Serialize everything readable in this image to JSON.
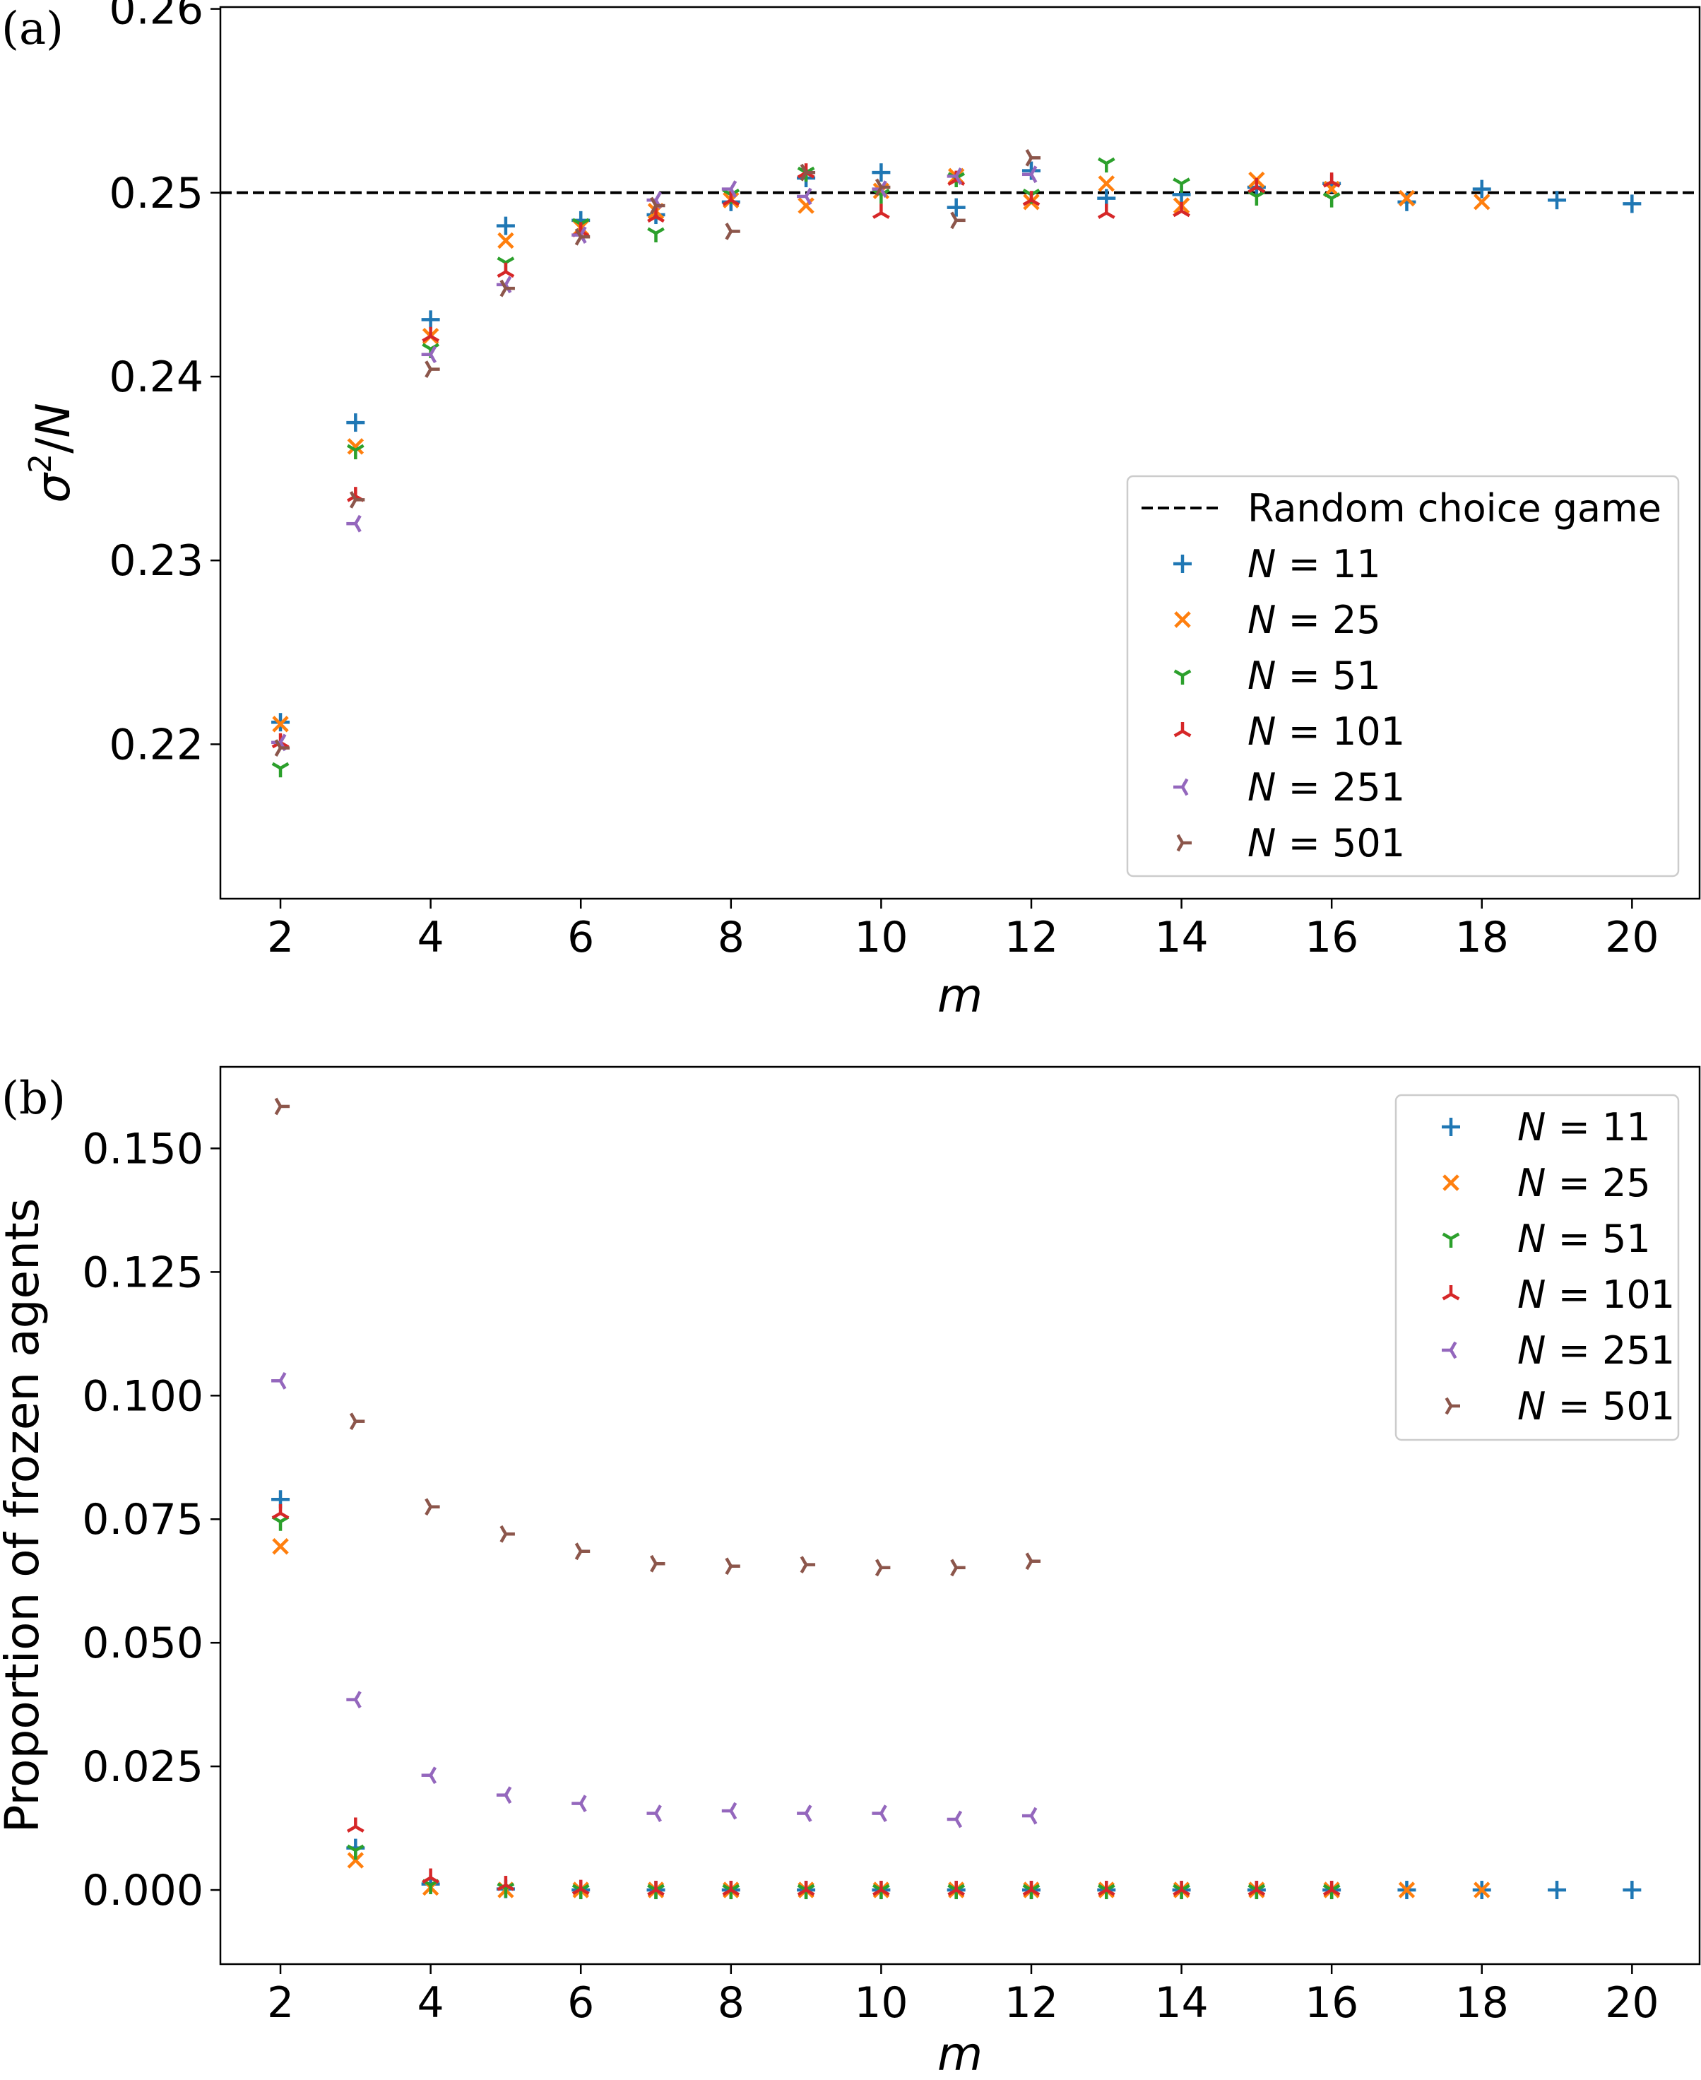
{
  "chart_data": [
    {
      "panel_label": "(a)",
      "type": "scatter",
      "xlabel": "m",
      "ylabel": "σ²/N",
      "xlim": [
        1.2,
        20.9
      ],
      "ylim": [
        0.2116,
        0.2601
      ],
      "xticks": [
        2,
        4,
        6,
        8,
        10,
        12,
        14,
        16,
        18,
        20
      ],
      "yticks": [
        0.22,
        0.23,
        0.24,
        0.25,
        0.26
      ],
      "ytick_labels": [
        "0.22",
        "0.23",
        "0.24",
        "0.25",
        "0.26"
      ],
      "grid": false,
      "legend_position": "lower-right",
      "reference_line": {
        "name": "Random choice game",
        "y": 0.25,
        "style": "dashed",
        "color": "#000000"
      },
      "series": [
        {
          "name": "N = 11",
          "marker": "plus",
          "color": "#1f77b4",
          "points": [
            [
              2,
              0.2212
            ],
            [
              3,
              0.2375
            ],
            [
              4,
              0.2431
            ],
            [
              5,
              0.2482
            ],
            [
              6,
              0.2485
            ],
            [
              7,
              0.2488
            ],
            [
              8,
              0.2495
            ],
            [
              9,
              0.2508
            ],
            [
              10,
              0.2511
            ],
            [
              11,
              0.2492
            ],
            [
              12,
              0.2512
            ],
            [
              13,
              0.2497
            ],
            [
              14,
              0.2499
            ],
            [
              15,
              0.2503
            ],
            [
              16,
              0.2505
            ],
            [
              17,
              0.2495
            ],
            [
              18,
              0.2502
            ],
            [
              19,
              0.2496
            ],
            [
              20,
              0.2494
            ]
          ]
        },
        {
          "name": "N = 25",
          "marker": "x",
          "color": "#ff7f0e",
          "points": [
            [
              2,
              0.2211
            ],
            [
              3,
              0.2362
            ],
            [
              4,
              0.2422
            ],
            [
              5,
              0.2474
            ],
            [
              6,
              0.2481
            ],
            [
              7,
              0.249
            ],
            [
              8,
              0.2496
            ],
            [
              9,
              0.2493
            ],
            [
              10,
              0.2501
            ],
            [
              11,
              0.2509
            ],
            [
              12,
              0.2495
            ],
            [
              13,
              0.2505
            ],
            [
              14,
              0.2493
            ],
            [
              15,
              0.2507
            ],
            [
              16,
              0.2502
            ],
            [
              17,
              0.2497
            ],
            [
              18,
              0.2495
            ]
          ]
        },
        {
          "name": "N = 51",
          "marker": "tri_down",
          "color": "#2ca02c",
          "points": [
            [
              2,
              0.2187
            ],
            [
              3,
              0.236
            ],
            [
              4,
              0.2415
            ],
            [
              5,
              0.2462
            ],
            [
              6,
              0.2483
            ],
            [
              7,
              0.2478
            ],
            [
              8,
              0.2499
            ],
            [
              9,
              0.2511
            ],
            [
              10,
              0.2499
            ],
            [
              11,
              0.2508
            ],
            [
              12,
              0.2499
            ],
            [
              13,
              0.2516
            ],
            [
              14,
              0.2505
            ],
            [
              15,
              0.2498
            ],
            [
              16,
              0.2497
            ]
          ]
        },
        {
          "name": "N = 101",
          "marker": "tri_up",
          "color": "#d62728",
          "points": [
            [
              2,
              0.2201
            ],
            [
              3,
              0.2335
            ],
            [
              4,
              0.2422
            ],
            [
              5,
              0.2457
            ],
            [
              6,
              0.2479
            ],
            [
              7,
              0.2487
            ],
            [
              8,
              0.2496
            ],
            [
              9,
              0.2511
            ],
            [
              10,
              0.2489
            ],
            [
              11,
              0.2507
            ],
            [
              12,
              0.2496
            ],
            [
              13,
              0.2489
            ],
            [
              14,
              0.249
            ],
            [
              15,
              0.2503
            ],
            [
              16,
              0.2506
            ]
          ]
        },
        {
          "name": "N = 251",
          "marker": "tri_left",
          "color": "#9467bd",
          "points": [
            [
              2,
              0.2201
            ],
            [
              3,
              0.232
            ],
            [
              4,
              0.2412
            ],
            [
              5,
              0.245
            ],
            [
              6,
              0.2477
            ],
            [
              7,
              0.2496
            ],
            [
              8,
              0.2502
            ],
            [
              9,
              0.2498
            ],
            [
              10,
              0.2502
            ],
            [
              11,
              0.2509
            ],
            [
              12,
              0.251
            ]
          ]
        },
        {
          "name": "N = 501",
          "marker": "tri_right",
          "color": "#8c564b",
          "points": [
            [
              2,
              0.2198
            ],
            [
              3,
              0.2333
            ],
            [
              4,
              0.2404
            ],
            [
              5,
              0.2448
            ],
            [
              6,
              0.2476
            ],
            [
              7,
              0.2493
            ],
            [
              8,
              0.2479
            ],
            [
              9,
              0.2511
            ],
            [
              10,
              0.2503
            ],
            [
              11,
              0.2485
            ],
            [
              12,
              0.2519
            ]
          ]
        }
      ]
    },
    {
      "panel_label": "(b)",
      "type": "scatter",
      "xlabel": "m",
      "ylabel": "Proportion of frozen agents",
      "xlim": [
        1.2,
        20.9
      ],
      "ylim": [
        -0.015,
        0.1665
      ],
      "xticks": [
        2,
        4,
        6,
        8,
        10,
        12,
        14,
        16,
        18,
        20
      ],
      "yticks": [
        0.0,
        0.025,
        0.05,
        0.075,
        0.1,
        0.125,
        0.15
      ],
      "ytick_labels": [
        "0.000",
        "0.025",
        "0.050",
        "0.075",
        "0.100",
        "0.125",
        "0.150"
      ],
      "grid": false,
      "legend_position": "upper-right",
      "series": [
        {
          "name": "N = 11",
          "marker": "plus",
          "color": "#1f77b4",
          "points": [
            [
              2,
              0.079
            ],
            [
              3,
              0.0085
            ],
            [
              4,
              0.0012
            ],
            [
              5,
              0.0002
            ],
            [
              6,
              0
            ],
            [
              7,
              0
            ],
            [
              8,
              0
            ],
            [
              9,
              0
            ],
            [
              10,
              0
            ],
            [
              11,
              0
            ],
            [
              12,
              0
            ],
            [
              13,
              0
            ],
            [
              14,
              0
            ],
            [
              15,
              0
            ],
            [
              16,
              0
            ],
            [
              17,
              0
            ],
            [
              18,
              0
            ],
            [
              19,
              0
            ],
            [
              20,
              0
            ]
          ]
        },
        {
          "name": "N = 25",
          "marker": "x",
          "color": "#ff7f0e",
          "points": [
            [
              2,
              0.0695
            ],
            [
              3,
              0.006
            ],
            [
              4,
              0.0005
            ],
            [
              5,
              0
            ],
            [
              6,
              0
            ],
            [
              7,
              0
            ],
            [
              8,
              0
            ],
            [
              9,
              0
            ],
            [
              10,
              0
            ],
            [
              11,
              0
            ],
            [
              12,
              0
            ],
            [
              13,
              0
            ],
            [
              14,
              0
            ],
            [
              15,
              0
            ],
            [
              16,
              0
            ],
            [
              17,
              0
            ],
            [
              18,
              0
            ]
          ]
        },
        {
          "name": "N = 51",
          "marker": "tri_down",
          "color": "#2ca02c",
          "points": [
            [
              2,
              0.0745
            ],
            [
              3,
              0.008
            ],
            [
              4,
              0.001
            ],
            [
              5,
              0.0003
            ],
            [
              6,
              0
            ],
            [
              7,
              0
            ],
            [
              8,
              0
            ],
            [
              9,
              0
            ],
            [
              10,
              0
            ],
            [
              11,
              0
            ],
            [
              12,
              0
            ],
            [
              13,
              0
            ],
            [
              14,
              0
            ],
            [
              15,
              0
            ],
            [
              16,
              0
            ]
          ]
        },
        {
          "name": "N = 101",
          "marker": "tri_up",
          "color": "#d62728",
          "points": [
            [
              2,
              0.0762
            ],
            [
              3,
              0.0128
            ],
            [
              4,
              0.0025
            ],
            [
              5,
              0.001
            ],
            [
              6,
              0.0002
            ],
            [
              7,
              0
            ],
            [
              8,
              0
            ],
            [
              9,
              0
            ],
            [
              10,
              0
            ],
            [
              11,
              0
            ],
            [
              12,
              0
            ],
            [
              13,
              0
            ],
            [
              14,
              0
            ],
            [
              15,
              0
            ],
            [
              16,
              0
            ]
          ]
        },
        {
          "name": "N = 251",
          "marker": "tri_left",
          "color": "#9467bd",
          "points": [
            [
              2,
              0.103
            ],
            [
              3,
              0.0385
            ],
            [
              4,
              0.0232
            ],
            [
              5,
              0.0192
            ],
            [
              6,
              0.0175
            ],
            [
              7,
              0.0155
            ],
            [
              8,
              0.016
            ],
            [
              9,
              0.0155
            ],
            [
              10,
              0.0155
            ],
            [
              11,
              0.0143
            ],
            [
              12,
              0.015
            ]
          ]
        },
        {
          "name": "N = 501",
          "marker": "tri_right",
          "color": "#8c564b",
          "points": [
            [
              2,
              0.1585
            ],
            [
              3,
              0.0948
            ],
            [
              4,
              0.0775
            ],
            [
              5,
              0.072
            ],
            [
              6,
              0.0685
            ],
            [
              7,
              0.066
            ],
            [
              8,
              0.0655
            ],
            [
              9,
              0.0658
            ],
            [
              10,
              0.0652
            ],
            [
              11,
              0.0652
            ],
            [
              12,
              0.0665
            ]
          ]
        }
      ]
    }
  ]
}
